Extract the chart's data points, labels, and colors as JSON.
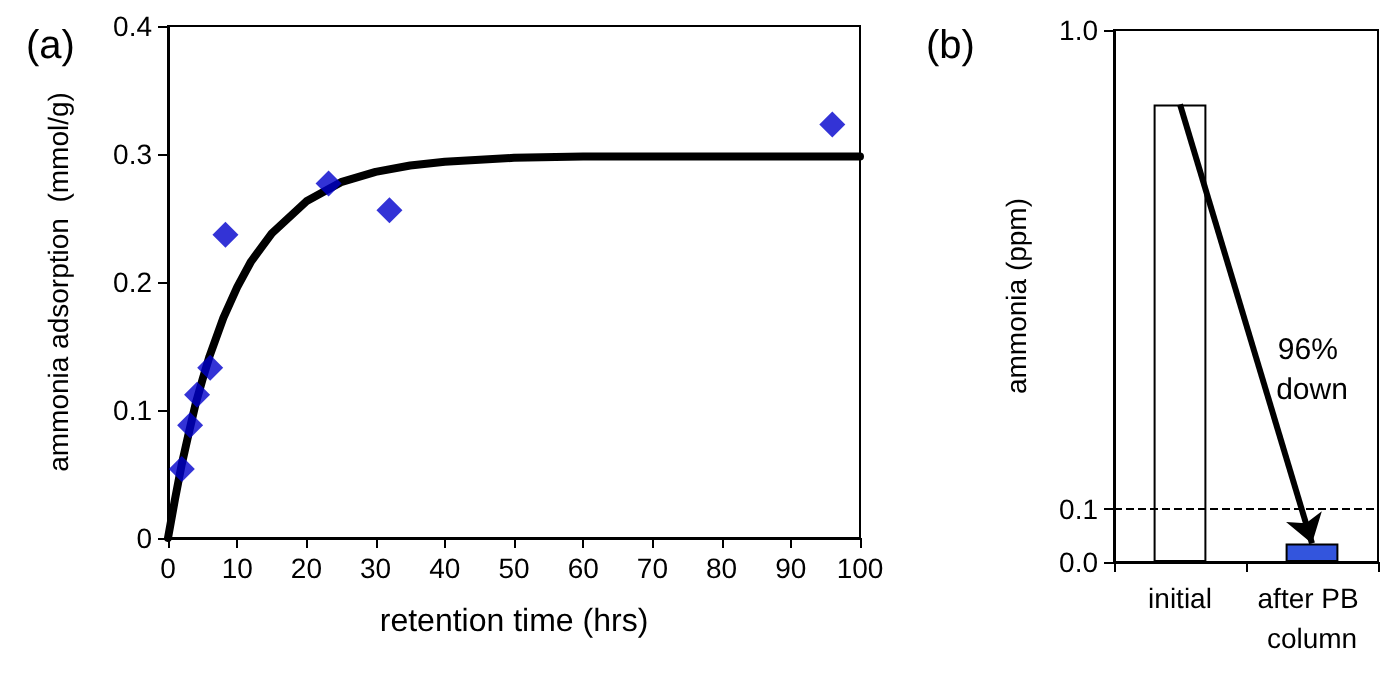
{
  "chart_data": [
    {
      "type": "scatter",
      "title": "(a)",
      "xlabel": "retention time (hrs)",
      "ylabel": "ammonia adsorption  (mmol/g)",
      "xlim": [
        0,
        100
      ],
      "xticks": [
        0,
        10,
        20,
        30,
        40,
        50,
        60,
        70,
        80,
        90,
        100
      ],
      "ylim": [
        0,
        0.4
      ],
      "yticks": [
        0,
        0.1,
        0.2,
        0.3,
        0.4
      ],
      "series": [
        {
          "type": "scatter",
          "color": "#0000cc",
          "marker": "diamond",
          "x": [
            2.0,
            3.2,
            4.2,
            6.1,
            8.3,
            23.2,
            32.0,
            96.0
          ],
          "values": [
            0.054,
            0.088,
            0.112,
            0.133,
            0.237,
            0.277,
            0.256,
            0.323
          ]
        },
        {
          "type": "line",
          "color": "#000000",
          "marker": "none",
          "line_style": "solid",
          "x": [
            0,
            1,
            2,
            3,
            4,
            5,
            6,
            8,
            10,
            12,
            15,
            20,
            25,
            30,
            35,
            40,
            50,
            60,
            80,
            100
          ],
          "values": [
            0,
            0.03,
            0.058,
            0.082,
            0.105,
            0.124,
            0.142,
            0.172,
            0.196,
            0.216,
            0.238,
            0.263,
            0.278,
            0.286,
            0.291,
            0.294,
            0.297,
            0.298,
            0.298,
            0.298
          ]
        }
      ]
    },
    {
      "type": "bar",
      "title": "(b)",
      "ylabel": "ammonia (ppm)",
      "categories": [
        "initial",
        "after PB column"
      ],
      "values": [
        0.86,
        0.035
      ],
      "colors": [
        "#ffffff",
        "#3355dd"
      ],
      "ylim": [
        0,
        1.0
      ],
      "yticks": [
        {
          "value": 0,
          "label": "0.0"
        },
        {
          "value": 0.1,
          "label": "0.1"
        },
        {
          "value": 1,
          "label": "1.0"
        }
      ],
      "ref_lines": [
        {
          "axis": "y",
          "value": 0.1,
          "line_style": "dashed",
          "color": "#000000"
        }
      ],
      "annotations": [
        "96% down"
      ]
    }
  ]
}
